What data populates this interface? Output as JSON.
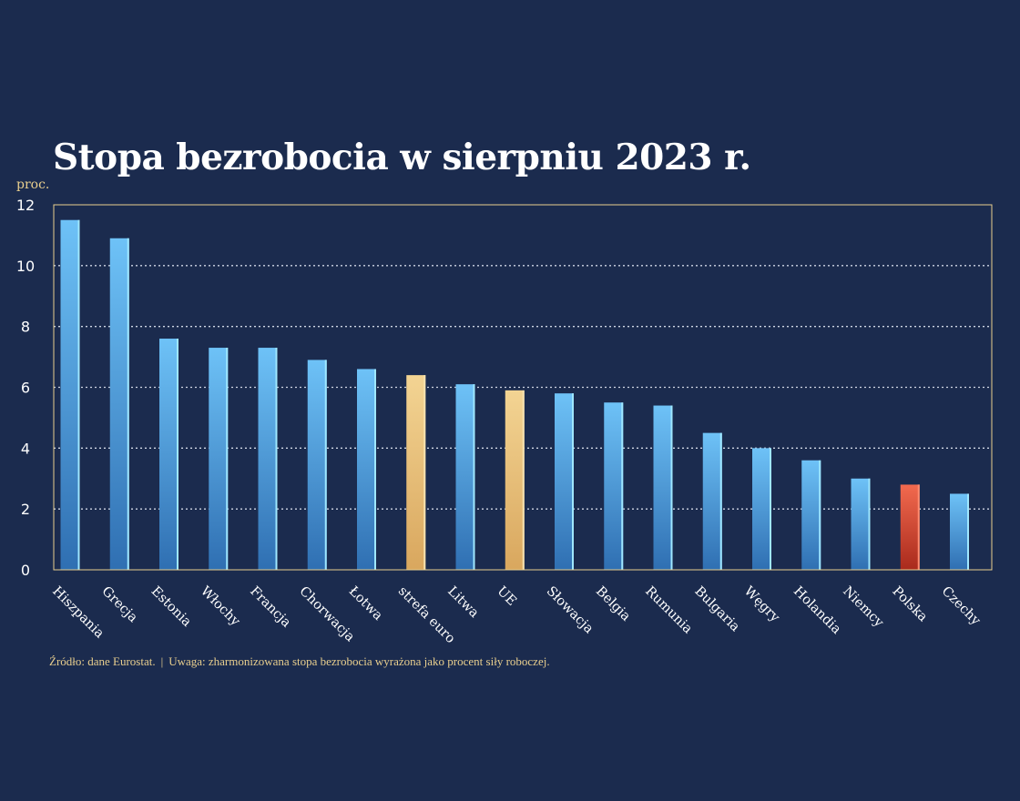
{
  "colors": {
    "background": "#1b2b4e",
    "bar_default_top": "#6ec2f7",
    "bar_default_bottom": "#2f6fb2",
    "bar_euro_top": "#f3d493",
    "bar_euro_bottom": "#d9a75e",
    "bar_poland_top": "#f26a4f",
    "bar_poland_bottom": "#a92a1c",
    "accent_text": "#e9cf8e",
    "frame": "#e9cf8e"
  },
  "footnote": {
    "source": "Źródło: dane Eurostat.",
    "separator": "|",
    "note": "Uwaga: zharmonizowana stopa bezrobocia wyrażona jako procent siły roboczej."
  },
  "chart_data": {
    "type": "bar",
    "title": "Stopa bezrobocia w sierpniu 2023 r.",
    "ylabel": "proc.",
    "xlabel": "",
    "ylim": [
      0,
      12
    ],
    "yticks": [
      "0",
      "2",
      "4",
      "6",
      "8",
      "10",
      "12"
    ],
    "grid": true,
    "categories": [
      "Hiszpania",
      "Grecja",
      "Estonia",
      "Włochy",
      "Francja",
      "Chorwacja",
      "Łotwa",
      "strefa euro",
      "Litwa",
      "UE",
      "Słowacja",
      "Belgia",
      "Rumunia",
      "Bulgaria",
      "Węgry",
      "Holandia",
      "Niemcy",
      "Polska",
      "Czechy"
    ],
    "values": [
      11.5,
      10.9,
      7.6,
      7.3,
      7.3,
      6.9,
      6.6,
      6.4,
      6.1,
      5.9,
      5.8,
      5.5,
      5.4,
      4.5,
      4.0,
      3.6,
      3.0,
      2.8,
      2.5
    ],
    "highlights": {
      "strefa euro": "euro",
      "UE": "euro",
      "Polska": "poland"
    }
  }
}
